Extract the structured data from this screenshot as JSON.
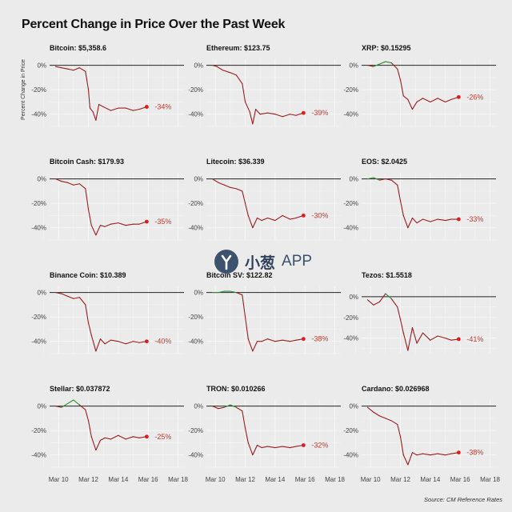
{
  "title": "Percent Change in Price Over the Past Week",
  "source": "Source: CM Reference Rates",
  "watermark": {
    "cn": "小葱",
    "app": "APP"
  },
  "ylabel": "Percent Change in Price",
  "colors": {
    "up": "#2e8b2e",
    "down": "#9b1c1c",
    "dot": "#e31a1c",
    "label": "#c0392b",
    "zero": "#222222",
    "grid": "#ffffff"
  },
  "chart_data": [
    {
      "type": "line",
      "title": "Bitcoin: $5,358.6",
      "end_label": "-34%",
      "x_ticks": [
        "Mar 10",
        "Mar 12",
        "Mar 14",
        "Mar 16",
        "Mar 18"
      ],
      "y_ticks": [
        "0%",
        "-20%",
        "-40%"
      ],
      "ylim": [
        -50,
        5
      ],
      "xlim": [
        9.4,
        18.4
      ],
      "x": [
        9.8,
        10.2,
        10.6,
        11.0,
        11.4,
        11.8,
        12.0,
        12.1,
        12.3,
        12.5,
        12.7,
        13.0,
        13.5,
        14.0,
        14.5,
        15.0,
        15.4,
        15.9
      ],
      "y": [
        -1,
        -2,
        -3,
        -4,
        -2,
        -5,
        -20,
        -35,
        -38,
        -45,
        -32,
        -34,
        -37,
        -35,
        -35,
        -37,
        -36,
        -34
      ]
    },
    {
      "type": "line",
      "title": "Ethereum: $123.75",
      "end_label": "-39%",
      "x_ticks": [
        "Mar 10",
        "Mar 12",
        "Mar 14",
        "Mar 16",
        "Mar 18"
      ],
      "y_ticks": [
        "0%",
        "-20%",
        "-40%"
      ],
      "ylim": [
        -50,
        5
      ],
      "xlim": [
        9.4,
        18.4
      ],
      "x": [
        9.8,
        10.1,
        10.5,
        11.0,
        11.4,
        11.8,
        12.0,
        12.3,
        12.5,
        12.7,
        13.0,
        13.5,
        14.0,
        14.5,
        15.0,
        15.4,
        15.9
      ],
      "y": [
        0,
        -1,
        -4,
        -6,
        -8,
        -15,
        -30,
        -38,
        -48,
        -36,
        -40,
        -39,
        -40,
        -42,
        -40,
        -41,
        -39
      ]
    },
    {
      "type": "line",
      "title": "XRP: $0.15295",
      "end_label": "-26%",
      "x_ticks": [
        "Mar 10",
        "Mar 12",
        "Mar 14",
        "Mar 16",
        "Mar 18"
      ],
      "y_ticks": [
        "0%",
        "-20%",
        "-40%"
      ],
      "ylim": [
        -50,
        5
      ],
      "xlim": [
        9.4,
        18.4
      ],
      "x": [
        9.8,
        10.2,
        10.6,
        11.0,
        11.4,
        11.8,
        12.0,
        12.2,
        12.5,
        12.8,
        13.1,
        13.5,
        14.0,
        14.5,
        15.0,
        15.4,
        15.9
      ],
      "y": [
        0,
        -1,
        1,
        3,
        2,
        -3,
        -12,
        -25,
        -28,
        -36,
        -30,
        -27,
        -30,
        -27,
        -30,
        -28,
        -26
      ]
    },
    {
      "type": "line",
      "title": "Bitcoin Cash: $179.93",
      "end_label": "-35%",
      "x_ticks": [
        "Mar 10",
        "Mar 12",
        "Mar 14",
        "Mar 16",
        "Mar 18"
      ],
      "y_ticks": [
        "0%",
        "-20%",
        "-40%"
      ],
      "ylim": [
        -50,
        5
      ],
      "xlim": [
        9.4,
        18.4
      ],
      "x": [
        9.8,
        10.2,
        10.6,
        11.0,
        11.4,
        11.8,
        12.0,
        12.2,
        12.5,
        12.8,
        13.1,
        13.5,
        14.0,
        14.5,
        15.0,
        15.4,
        15.9
      ],
      "y": [
        0,
        -2,
        -3,
        -5,
        -4,
        -8,
        -25,
        -38,
        -46,
        -38,
        -39,
        -37,
        -36,
        -38,
        -37,
        -37,
        -35
      ]
    },
    {
      "type": "line",
      "title": "Litecoin: $36.339",
      "end_label": "-30%",
      "x_ticks": [
        "Mar 10",
        "Mar 12",
        "Mar 14",
        "Mar 16",
        "Mar 18"
      ],
      "y_ticks": [
        "0%",
        "-20%",
        "-40%"
      ],
      "ylim": [
        -50,
        5
      ],
      "xlim": [
        9.4,
        18.4
      ],
      "x": [
        9.8,
        10.2,
        10.6,
        11.0,
        11.4,
        11.8,
        12.0,
        12.2,
        12.5,
        12.8,
        13.1,
        13.5,
        14.0,
        14.5,
        15.0,
        15.4,
        15.9
      ],
      "y": [
        0,
        -3,
        -5,
        -7,
        -8,
        -10,
        -20,
        -30,
        -40,
        -32,
        -34,
        -32,
        -34,
        -30,
        -33,
        -32,
        -30
      ]
    },
    {
      "type": "line",
      "title": "EOS: $2.0425",
      "end_label": "-33%",
      "x_ticks": [
        "Mar 10",
        "Mar 12",
        "Mar 14",
        "Mar 16",
        "Mar 18"
      ],
      "y_ticks": [
        "0%",
        "-20%",
        "-40%"
      ],
      "ylim": [
        -50,
        5
      ],
      "xlim": [
        9.4,
        18.4
      ],
      "x": [
        9.8,
        10.2,
        10.6,
        11.0,
        11.4,
        11.8,
        12.0,
        12.2,
        12.5,
        12.8,
        13.1,
        13.5,
        14.0,
        14.5,
        15.0,
        15.4,
        15.9
      ],
      "y": [
        0,
        1,
        -1,
        0,
        -1,
        -5,
        -18,
        -30,
        -40,
        -32,
        -36,
        -33,
        -35,
        -33,
        -34,
        -33,
        -33
      ]
    },
    {
      "type": "line",
      "title": "Binance Coin: $10.389",
      "end_label": "-40%",
      "x_ticks": [
        "Mar 10",
        "Mar 12",
        "Mar 14",
        "Mar 16",
        "Mar 18"
      ],
      "y_ticks": [
        "0%",
        "-20%",
        "-40%"
      ],
      "ylim": [
        -50,
        5
      ],
      "xlim": [
        9.4,
        18.4
      ],
      "x": [
        9.8,
        10.2,
        10.6,
        11.0,
        11.4,
        11.8,
        12.0,
        12.2,
        12.5,
        12.8,
        13.1,
        13.5,
        14.0,
        14.5,
        15.0,
        15.4,
        15.9
      ],
      "y": [
        0,
        -1,
        -3,
        -5,
        -4,
        -10,
        -25,
        -35,
        -48,
        -38,
        -42,
        -39,
        -40,
        -42,
        -40,
        -41,
        -40
      ]
    },
    {
      "type": "line",
      "title": "Bitcoin SV: $122.82",
      "end_label": "-38%",
      "x_ticks": [
        "Mar 10",
        "Mar 12",
        "Mar 14",
        "Mar 16",
        "Mar 18"
      ],
      "y_ticks": [
        "0%",
        "-20%",
        "-40%"
      ],
      "ylim": [
        -50,
        5
      ],
      "xlim": [
        9.4,
        18.4
      ],
      "x": [
        9.8,
        10.2,
        10.6,
        11.0,
        11.4,
        11.8,
        12.0,
        12.2,
        12.5,
        12.8,
        13.1,
        13.5,
        14.0,
        14.5,
        15.0,
        15.4,
        15.9
      ],
      "y": [
        0,
        0,
        1,
        1,
        0,
        -2,
        -20,
        -38,
        -48,
        -40,
        -40,
        -38,
        -40,
        -39,
        -40,
        -39,
        -38
      ]
    },
    {
      "type": "line",
      "title": "Tezos: $1.5518",
      "end_label": "-41%",
      "x_ticks": [
        "Mar 10",
        "Mar 12",
        "Mar 14",
        "Mar 16",
        "Mar 18"
      ],
      "y_ticks": [
        "0%",
        "-20%",
        "-40%"
      ],
      "ylim": [
        -55,
        10
      ],
      "xlim": [
        9.4,
        18.4
      ],
      "x": [
        9.8,
        10.2,
        10.6,
        11.0,
        11.4,
        11.8,
        12.0,
        12.2,
        12.5,
        12.8,
        13.1,
        13.5,
        14.0,
        14.5,
        15.0,
        15.4,
        15.9
      ],
      "y": [
        -3,
        -8,
        -5,
        3,
        -2,
        -10,
        -22,
        -35,
        -52,
        -30,
        -45,
        -35,
        -42,
        -38,
        -40,
        -42,
        -41
      ]
    },
    {
      "type": "line",
      "title": "Stellar: $0.037872",
      "end_label": "-25%",
      "x_ticks": [
        "Mar 10",
        "Mar 12",
        "Mar 14",
        "Mar 16",
        "Mar 18"
      ],
      "y_ticks": [
        "0%",
        "-20%",
        "-40%"
      ],
      "ylim": [
        -50,
        5
      ],
      "xlim": [
        9.4,
        18.4
      ],
      "x": [
        9.8,
        10.2,
        10.6,
        11.0,
        11.4,
        11.8,
        12.0,
        12.2,
        12.5,
        12.8,
        13.1,
        13.5,
        14.0,
        14.5,
        15.0,
        15.4,
        15.9
      ],
      "y": [
        0,
        -1,
        2,
        5,
        1,
        -3,
        -12,
        -25,
        -36,
        -28,
        -26,
        -27,
        -24,
        -27,
        -25,
        -26,
        -25
      ]
    },
    {
      "type": "line",
      "title": "TRON: $0.010266",
      "end_label": "-32%",
      "x_ticks": [
        "Mar 10",
        "Mar 12",
        "Mar 14",
        "Mar 16",
        "Mar 18"
      ],
      "y_ticks": [
        "0%",
        "-20%",
        "-40%"
      ],
      "ylim": [
        -50,
        5
      ],
      "xlim": [
        9.4,
        18.4
      ],
      "x": [
        9.8,
        10.2,
        10.6,
        11.0,
        11.4,
        11.8,
        12.0,
        12.2,
        12.5,
        12.8,
        13.1,
        13.5,
        14.0,
        14.5,
        15.0,
        15.4,
        15.9
      ],
      "y": [
        0,
        -2,
        -1,
        1,
        -1,
        -4,
        -18,
        -30,
        -40,
        -32,
        -34,
        -33,
        -34,
        -33,
        -34,
        -33,
        -32
      ]
    },
    {
      "type": "line",
      "title": "Cardano: $0.026968",
      "end_label": "-38%",
      "x_ticks": [
        "Mar 10",
        "Mar 12",
        "Mar 14",
        "Mar 16",
        "Mar 18"
      ],
      "y_ticks": [
        "0%",
        "-20%",
        "-40%"
      ],
      "ylim": [
        -50,
        5
      ],
      "xlim": [
        9.4,
        18.4
      ],
      "x": [
        9.8,
        10.2,
        10.6,
        11.0,
        11.4,
        11.8,
        12.0,
        12.2,
        12.5,
        12.8,
        13.1,
        13.5,
        14.0,
        14.5,
        15.0,
        15.4,
        15.9
      ],
      "y": [
        -1,
        -5,
        -8,
        -10,
        -12,
        -15,
        -25,
        -40,
        -48,
        -38,
        -40,
        -39,
        -40,
        -39,
        -40,
        -39,
        -38
      ]
    }
  ]
}
